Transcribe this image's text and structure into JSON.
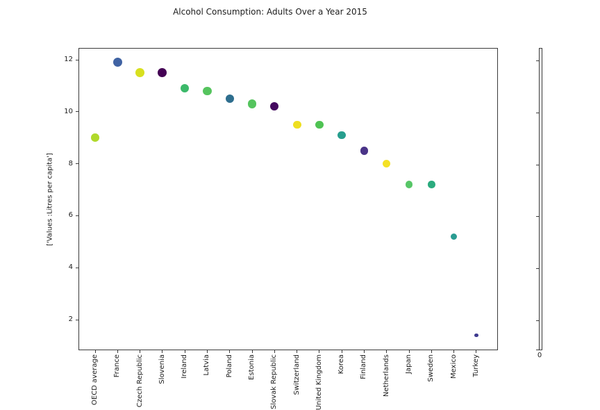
{
  "chart_data": {
    "type": "scatter",
    "title": "Alcohol Consumption: Adults Over a Year 2015",
    "xlabel": "",
    "ylabel": "['Values :Litres per capita']",
    "categories": [
      "OECD average",
      "France",
      "Czech Republic",
      "Slovenia",
      "Ireland",
      "Latvia",
      "Poland",
      "Estonia",
      "Slovak Republic",
      "Switzerland",
      "United Kingdom",
      "Korea",
      "Finland",
      "Netherlands",
      "Japan",
      "Sweden",
      "Mexico",
      "Turkey"
    ],
    "values": [
      9.0,
      11.9,
      11.5,
      11.5,
      10.9,
      10.8,
      10.5,
      10.3,
      10.2,
      9.5,
      9.5,
      9.1,
      8.5,
      8.0,
      7.2,
      7.2,
      5.2,
      1.4
    ],
    "point_colors": [
      "#b0d92b",
      "#4063a3",
      "#d8e01f",
      "#440154",
      "#3cb96a",
      "#55c45e",
      "#2e6e8e",
      "#55c45e",
      "#44095f",
      "#eedf20",
      "#4fc353",
      "#279e8e",
      "#4a3488",
      "#f4e125",
      "#57c667",
      "#2bab7e",
      "#2a9c92",
      "#3e3a8f"
    ],
    "yticks": [
      2,
      4,
      6,
      8,
      10,
      12
    ],
    "ylim": [
      0.8,
      12.5
    ],
    "grid": false,
    "legend": "none",
    "marker_size_rule": "marker area proportional to value",
    "x_tick_label_rotation": 90,
    "colorbar": {
      "bottom_label": "0"
    }
  }
}
